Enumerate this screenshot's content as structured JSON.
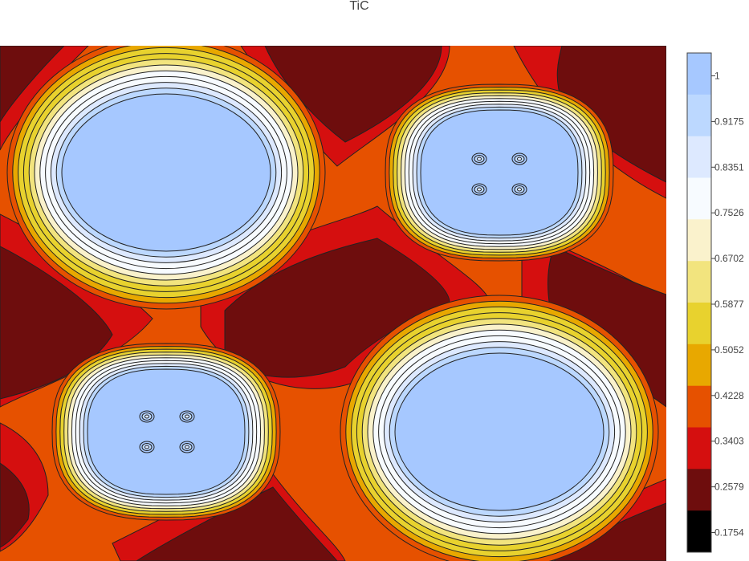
{
  "chart_data": {
    "type": "contour",
    "title": "TiC",
    "xlabel": "",
    "ylabel": "",
    "colorbar": {
      "ticks": [
        "1",
        "0.9175",
        "0.8351",
        "0.7526",
        "0.6702",
        "0.5877",
        "0.5052",
        "0.4228",
        "0.3403",
        "0.2579",
        "0.1754"
      ],
      "levels": [
        1.0,
        0.9175,
        0.8351,
        0.7526,
        0.6702,
        0.5877,
        0.5052,
        0.4228,
        0.3403,
        0.2579,
        0.1754
      ],
      "colors": [
        "#a6c8ff",
        "#bcd8ff",
        "#dde9ff",
        "#f7fbff",
        "#faf2cc",
        "#f2e47e",
        "#e8d22e",
        "#e8a800",
        "#e65100",
        "#d50f0f",
        "#6e0d0d",
        "#000000"
      ]
    },
    "features": [
      {
        "name": "large-maximum-top-left",
        "peak": 1.0
      },
      {
        "name": "small-maximum-top-right",
        "peak": 0.95
      },
      {
        "name": "small-maximum-bottom-left",
        "peak": 0.95
      },
      {
        "name": "large-maximum-bottom-right",
        "peak": 1.0
      }
    ],
    "grid": false
  }
}
